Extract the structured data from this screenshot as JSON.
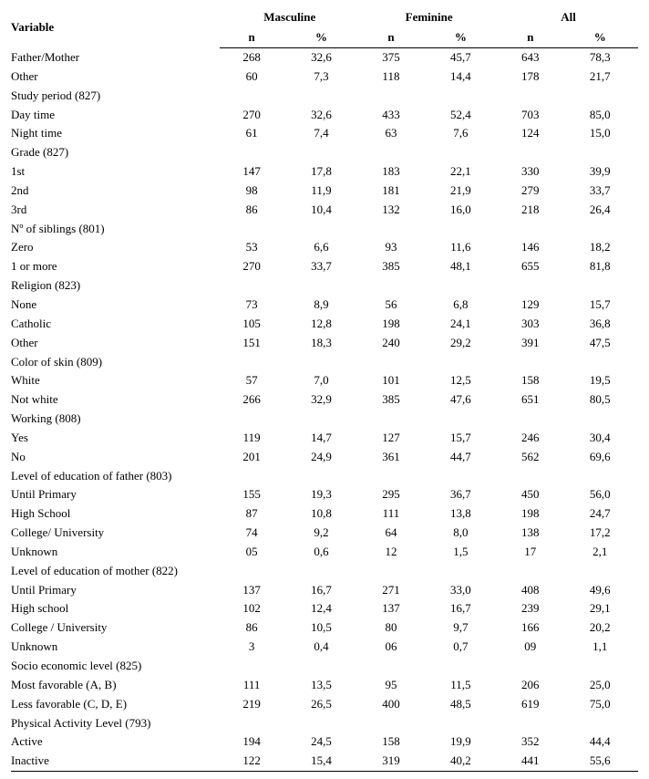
{
  "header": {
    "variable": "Variable",
    "groups": [
      "Masculine",
      "Feminine",
      "All"
    ],
    "sub": [
      "n",
      "%"
    ]
  },
  "rows": [
    {
      "label": "Father/Mother",
      "m_n": "268",
      "m_p": "32,6",
      "f_n": "375",
      "f_p": "45,7",
      "a_n": "643",
      "a_p": "78,3"
    },
    {
      "label": "Other",
      "m_n": "60",
      "m_p": "7,3",
      "f_n": "118",
      "f_p": "14,4",
      "a_n": "178",
      "a_p": "21,7"
    },
    {
      "label": "Study period (827)",
      "section": true
    },
    {
      "label": "Day time",
      "m_n": "270",
      "m_p": "32,6",
      "f_n": "433",
      "f_p": "52,4",
      "a_n": "703",
      "a_p": "85,0"
    },
    {
      "label": "Night time",
      "m_n": "61",
      "m_p": "7,4",
      "f_n": "63",
      "f_p": "7,6",
      "a_n": "124",
      "a_p": "15,0"
    },
    {
      "label": "Grade (827)",
      "section": true
    },
    {
      "label": "1st",
      "m_n": "147",
      "m_p": "17,8",
      "f_n": "183",
      "f_p": "22,1",
      "a_n": "330",
      "a_p": "39,9"
    },
    {
      "label": "2nd",
      "m_n": "98",
      "m_p": "11,9",
      "f_n": "181",
      "f_p": "21,9",
      "a_n": "279",
      "a_p": "33,7"
    },
    {
      "label": "3rd",
      "m_n": "86",
      "m_p": "10,4",
      "f_n": "132",
      "f_p": "16,0",
      "a_n": "218",
      "a_p": "26,4"
    },
    {
      "label": "Nº of siblings (801)",
      "section": true
    },
    {
      "label": "Zero",
      "m_n": "53",
      "m_p": "6,6",
      "f_n": "93",
      "f_p": "11,6",
      "a_n": "146",
      "a_p": "18,2"
    },
    {
      "label": "1 or more",
      "m_n": "270",
      "m_p": "33,7",
      "f_n": "385",
      "f_p": "48,1",
      "a_n": "655",
      "a_p": "81,8"
    },
    {
      "label": "Religion (823)",
      "section": true
    },
    {
      "label": "None",
      "m_n": "73",
      "m_p": "8,9",
      "f_n": "56",
      "f_p": "6,8",
      "a_n": "129",
      "a_p": "15,7"
    },
    {
      "label": "Catholic",
      "m_n": "105",
      "m_p": "12,8",
      "f_n": "198",
      "f_p": "24,1",
      "a_n": "303",
      "a_p": "36,8"
    },
    {
      "label": "Other",
      "m_n": "151",
      "m_p": "18,3",
      "f_n": "240",
      "f_p": "29,2",
      "a_n": "391",
      "a_p": "47,5"
    },
    {
      "label": "Color of skin (809)",
      "section": true
    },
    {
      "label": "White",
      "m_n": "57",
      "m_p": "7,0",
      "f_n": "101",
      "f_p": "12,5",
      "a_n": "158",
      "a_p": "19,5"
    },
    {
      "label": "Not white",
      "m_n": "266",
      "m_p": "32,9",
      "f_n": "385",
      "f_p": "47,6",
      "a_n": "651",
      "a_p": "80,5"
    },
    {
      "label": "Working (808)",
      "section": true
    },
    {
      "label": "Yes",
      "m_n": "119",
      "m_p": "14,7",
      "f_n": "127",
      "f_p": "15,7",
      "a_n": "246",
      "a_p": "30,4"
    },
    {
      "label": "No",
      "m_n": "201",
      "m_p": "24,9",
      "f_n": "361",
      "f_p": "44,7",
      "a_n": "562",
      "a_p": "69,6"
    },
    {
      "label": "Level of education of father (803)",
      "section": true
    },
    {
      "label": "Until Primary",
      "m_n": "155",
      "m_p": "19,3",
      "f_n": "295",
      "f_p": "36,7",
      "a_n": "450",
      "a_p": "56,0"
    },
    {
      "label": "High School",
      "m_n": "87",
      "m_p": "10,8",
      "f_n": "111",
      "f_p": "13,8",
      "a_n": "198",
      "a_p": "24,7"
    },
    {
      "label": "College/ University",
      "m_n": "74",
      "m_p": "9,2",
      "f_n": "64",
      "f_p": "8,0",
      "a_n": "138",
      "a_p": "17,2"
    },
    {
      "label": "Unknown",
      "m_n": "05",
      "m_p": "0,6",
      "f_n": "12",
      "f_p": "1,5",
      "a_n": "17",
      "a_p": "2,1"
    },
    {
      "label": "Level of education of mother (822)",
      "section": true
    },
    {
      "label": "Until Primary",
      "m_n": "137",
      "m_p": "16,7",
      "f_n": "271",
      "f_p": "33,0",
      "a_n": "408",
      "a_p": "49,6"
    },
    {
      "label": "High school",
      "m_n": "102",
      "m_p": "12,4",
      "f_n": "137",
      "f_p": "16,7",
      "a_n": "239",
      "a_p": "29,1"
    },
    {
      "label": "College / University",
      "m_n": "86",
      "m_p": "10,5",
      "f_n": "80",
      "f_p": "9,7",
      "a_n": "166",
      "a_p": "20,2"
    },
    {
      "label": "Unknown",
      "m_n": "3",
      "m_p": "0,4",
      "f_n": "06",
      "f_p": "0,7",
      "a_n": "09",
      "a_p": "1,1"
    },
    {
      "label": "Socio economic level (825)",
      "section": true
    },
    {
      "label": "Most favorable (A, B)",
      "m_n": "111",
      "m_p": "13,5",
      "f_n": "95",
      "f_p": "11,5",
      "a_n": "206",
      "a_p": "25,0"
    },
    {
      "label": "Less favorable (C, D, E)",
      "m_n": "219",
      "m_p": "26,5",
      "f_n": "400",
      "f_p": "48,5",
      "a_n": "619",
      "a_p": "75,0"
    },
    {
      "label": "Physical Activity Level (793)",
      "section": true
    },
    {
      "label": "Active",
      "m_n": "194",
      "m_p": "24,5",
      "f_n": "158",
      "f_p": "19,9",
      "a_n": "352",
      "a_p": "44,4"
    },
    {
      "label": "Inactive",
      "m_n": "122",
      "m_p": "15,4",
      "f_n": "319",
      "f_p": "40,2",
      "a_n": "441",
      "a_p": "55,6",
      "last": true
    }
  ]
}
